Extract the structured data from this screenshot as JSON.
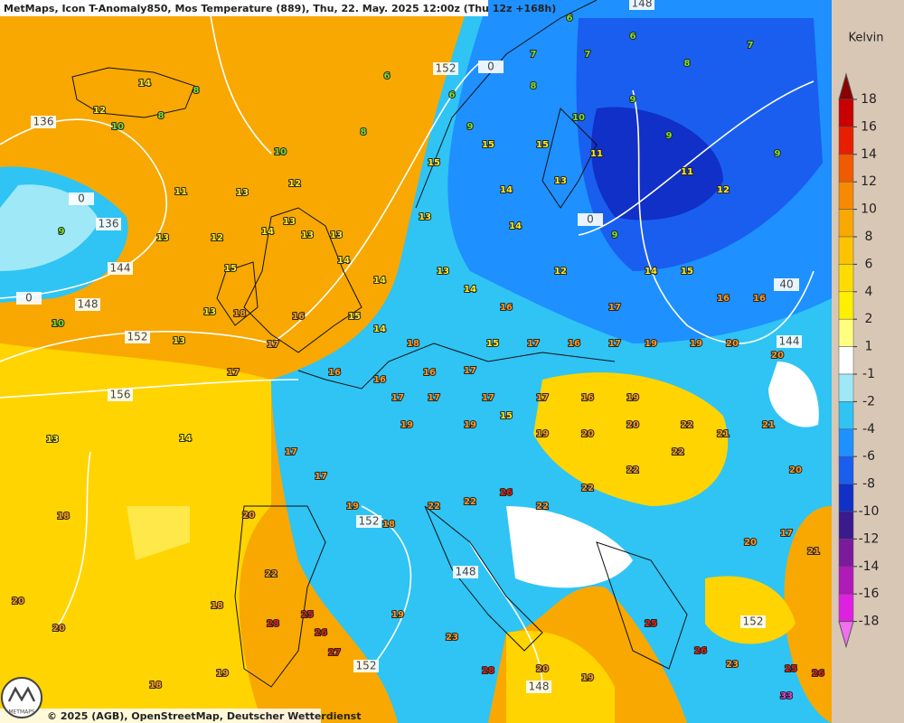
{
  "header": {
    "title": "MetMaps, Icon T-Anomaly850, Mos Temperature (889), Thu, 22. May. 2025 12:00z (Thu 12z +168h)"
  },
  "legend": {
    "unit": "Kelvin",
    "ticks": [
      18,
      16,
      14,
      12,
      10,
      8,
      6,
      4,
      2,
      1,
      -1,
      -2,
      -4,
      -6,
      -8,
      -10,
      -12,
      -14,
      -16,
      -18
    ],
    "colors": [
      "#8b0000",
      "#c80000",
      "#e81e00",
      "#f05a00",
      "#f78a00",
      "#f9a800",
      "#fcc400",
      "#ffdc00",
      "#fff000",
      "#ffff80",
      "#ffffff",
      "#9ee8f8",
      "#2fc4f4",
      "#1e90ff",
      "#1a5ef0",
      "#1030c8",
      "#3a1a8c",
      "#7a1a9c",
      "#b01ab8",
      "#e020e0",
      "#f070f0"
    ]
  },
  "isolines": {
    "labels": [
      136,
      136,
      144,
      148,
      152,
      156,
      152,
      0,
      152,
      148,
      148,
      144,
      152,
      40,
      0,
      0,
      148,
      152,
      0
    ]
  },
  "stations": {
    "values": [
      14,
      12,
      10,
      8,
      8,
      8,
      6,
      10,
      13,
      12,
      11,
      12,
      13,
      9,
      15,
      14,
      13,
      13,
      13,
      14,
      13,
      18,
      17,
      16,
      15,
      14,
      13,
      17,
      16,
      16,
      18,
      16,
      17,
      15,
      17,
      16,
      17,
      19,
      19,
      20,
      20,
      10,
      13,
      14,
      18,
      17,
      17,
      19,
      18,
      22,
      22,
      26,
      22,
      22,
      22,
      22,
      21,
      21,
      20,
      20,
      22,
      25,
      26,
      28,
      18,
      19,
      20,
      20,
      18,
      27,
      19,
      23,
      28,
      20,
      19,
      25,
      26,
      23,
      25,
      26,
      33,
      20,
      17,
      21,
      10,
      13,
      14,
      15,
      15,
      11,
      9,
      9,
      11,
      12,
      9,
      14,
      15,
      16,
      16,
      6,
      6,
      8,
      7,
      9,
      14,
      12,
      17,
      13,
      13,
      15,
      9,
      6,
      8,
      7,
      7,
      14,
      16,
      14,
      19,
      19,
      15,
      19,
      20,
      20,
      22,
      19,
      16,
      17,
      17,
      17,
      17
    ]
  },
  "footer": {
    "copyright": "© 2025 (AGB), OpenStreetMap, Deutscher Wetterdienst"
  },
  "logo": {
    "text": "METMAPS"
  }
}
